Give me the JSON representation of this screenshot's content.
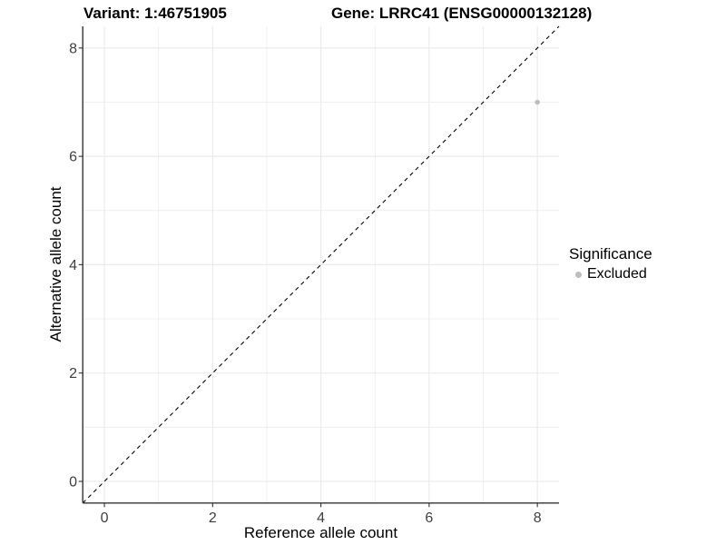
{
  "chart_data": {
    "type": "scatter",
    "title_left": "Variant: 1:46751905",
    "title_right": "Gene: LRRC41 (ENSG00000132128)",
    "xlabel": "Reference allele count",
    "ylabel": "Alternative allele count",
    "xlim": [
      -0.4,
      8.4
    ],
    "ylim": [
      -0.4,
      8.4
    ],
    "xticks": [
      0,
      2,
      4,
      6,
      8
    ],
    "yticks": [
      0,
      2,
      4,
      6,
      8
    ],
    "minor_gridlines": [
      1,
      3,
      5,
      7
    ],
    "grid": true,
    "legend_position": "right",
    "reference_line": {
      "type": "identity",
      "style": "dashed",
      "color": "#000000"
    },
    "series": [
      {
        "name": "Excluded",
        "color": "#bebebe",
        "points": [
          {
            "x": 8,
            "y": 7
          }
        ]
      }
    ],
    "legend": {
      "title": "Significance",
      "entries": [
        {
          "label": "Excluded",
          "color": "#bebebe"
        }
      ]
    }
  },
  "style": {
    "background": "#ffffff",
    "grid_color": "#ebebeb",
    "axis_color": "#333333",
    "tick_label_color": "#404040",
    "text_color": "#000000"
  }
}
